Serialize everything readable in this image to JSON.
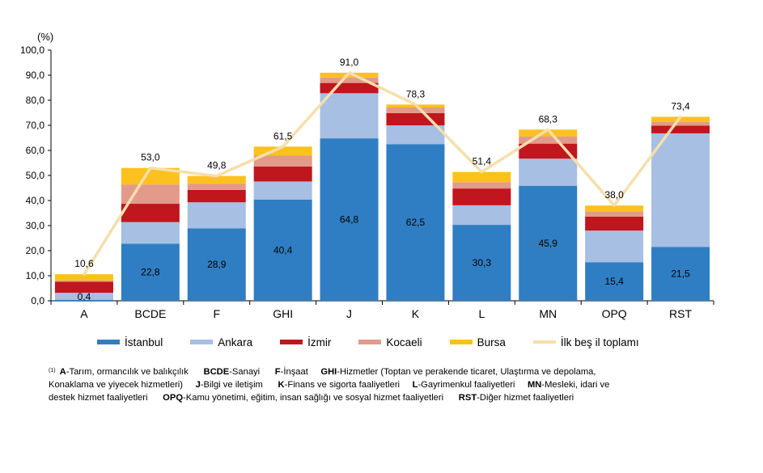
{
  "chart_data": {
    "type": "bar",
    "stacked": true,
    "unit_label": "(%)",
    "categories": [
      "A",
      "BCDE",
      "F",
      "GHI",
      "J",
      "K",
      "L",
      "MN",
      "OPQ",
      "RST"
    ],
    "ylim": [
      0,
      100
    ],
    "yticks": [
      "0,0",
      "10,0",
      "20,0",
      "30,0",
      "40,0",
      "50,0",
      "60,0",
      "70,0",
      "80,0",
      "90,0",
      "100,0"
    ],
    "series": [
      {
        "name": "İstanbul",
        "color": "#2f7ec3",
        "values": [
          0.4,
          22.8,
          28.9,
          40.4,
          64.8,
          62.5,
          30.3,
          45.9,
          15.4,
          21.5
        ],
        "labels": [
          "0,4",
          "22,8",
          "28,9",
          "40,4",
          "64,8",
          "62,5",
          "30,3",
          "45,9",
          "15,4",
          "21,5"
        ]
      },
      {
        "name": "Ankara",
        "color": "#a6bfe3",
        "values": [
          2.8,
          8.6,
          10.4,
          7.2,
          18.0,
          7.5,
          7.8,
          10.8,
          12.6,
          45.3
        ]
      },
      {
        "name": "İzmir",
        "color": "#c0161d",
        "values": [
          4.4,
          7.3,
          4.9,
          6.0,
          4.1,
          4.9,
          6.7,
          6.0,
          5.6,
          3.1
        ]
      },
      {
        "name": "Kocaeli",
        "color": "#e29a8b",
        "values": [
          0.5,
          7.7,
          2.4,
          4.3,
          2.1,
          2.2,
          2.5,
          2.9,
          2.0,
          1.5
        ]
      },
      {
        "name": "Bursa",
        "color": "#fcc11e",
        "values": [
          2.5,
          6.6,
          3.2,
          3.6,
          2.0,
          1.2,
          4.1,
          2.7,
          2.4,
          2.0
        ]
      }
    ],
    "total": {
      "name": "İlk beş il toplamı",
      "color": "#f6deac",
      "values": [
        10.6,
        53.0,
        49.8,
        61.5,
        91.0,
        78.3,
        51.4,
        68.3,
        38.0,
        73.4
      ],
      "labels": [
        "10,6",
        "53,0",
        "49,8",
        "61,5",
        "91,0",
        "78,3",
        "51,4",
        "68,3",
        "38,0",
        "73,4"
      ]
    }
  },
  "footnote": {
    "marker": "(1)",
    "line1": [
      {
        "b": "A",
        "t": "-Tarım, ormancılık ve balıkçılık"
      },
      {
        "b": "BCDE",
        "t": "-Sanayi"
      },
      {
        "b": "F",
        "t": "-İnşaat"
      },
      {
        "b": "GHI",
        "t": "-Hizmetler (Toptan ve perakende ticaret, Ulaştırma ve depolama,"
      }
    ],
    "line2": [
      {
        "b": "",
        "t": "Konaklama ve yiyecek hizmetleri)"
      },
      {
        "b": "J",
        "t": "-Bilgi ve iletişim"
      },
      {
        "b": "K",
        "t": "-Finans ve sigorta faaliyetleri"
      },
      {
        "b": "L",
        "t": "-Gayrimenkul faaliyetleri"
      },
      {
        "b": "MN",
        "t": "-Mesleki, idari ve"
      }
    ],
    "line3": [
      {
        "b": "",
        "t": "destek hizmet faaliyetleri"
      },
      {
        "b": "OPQ",
        "t": "-Kamu yönetimi, eğitim, insan sağlığı ve sosyal hizmet faaliyetleri"
      },
      {
        "b": "RST",
        "t": "-Diğer hizmet faaliyetleri"
      }
    ]
  }
}
